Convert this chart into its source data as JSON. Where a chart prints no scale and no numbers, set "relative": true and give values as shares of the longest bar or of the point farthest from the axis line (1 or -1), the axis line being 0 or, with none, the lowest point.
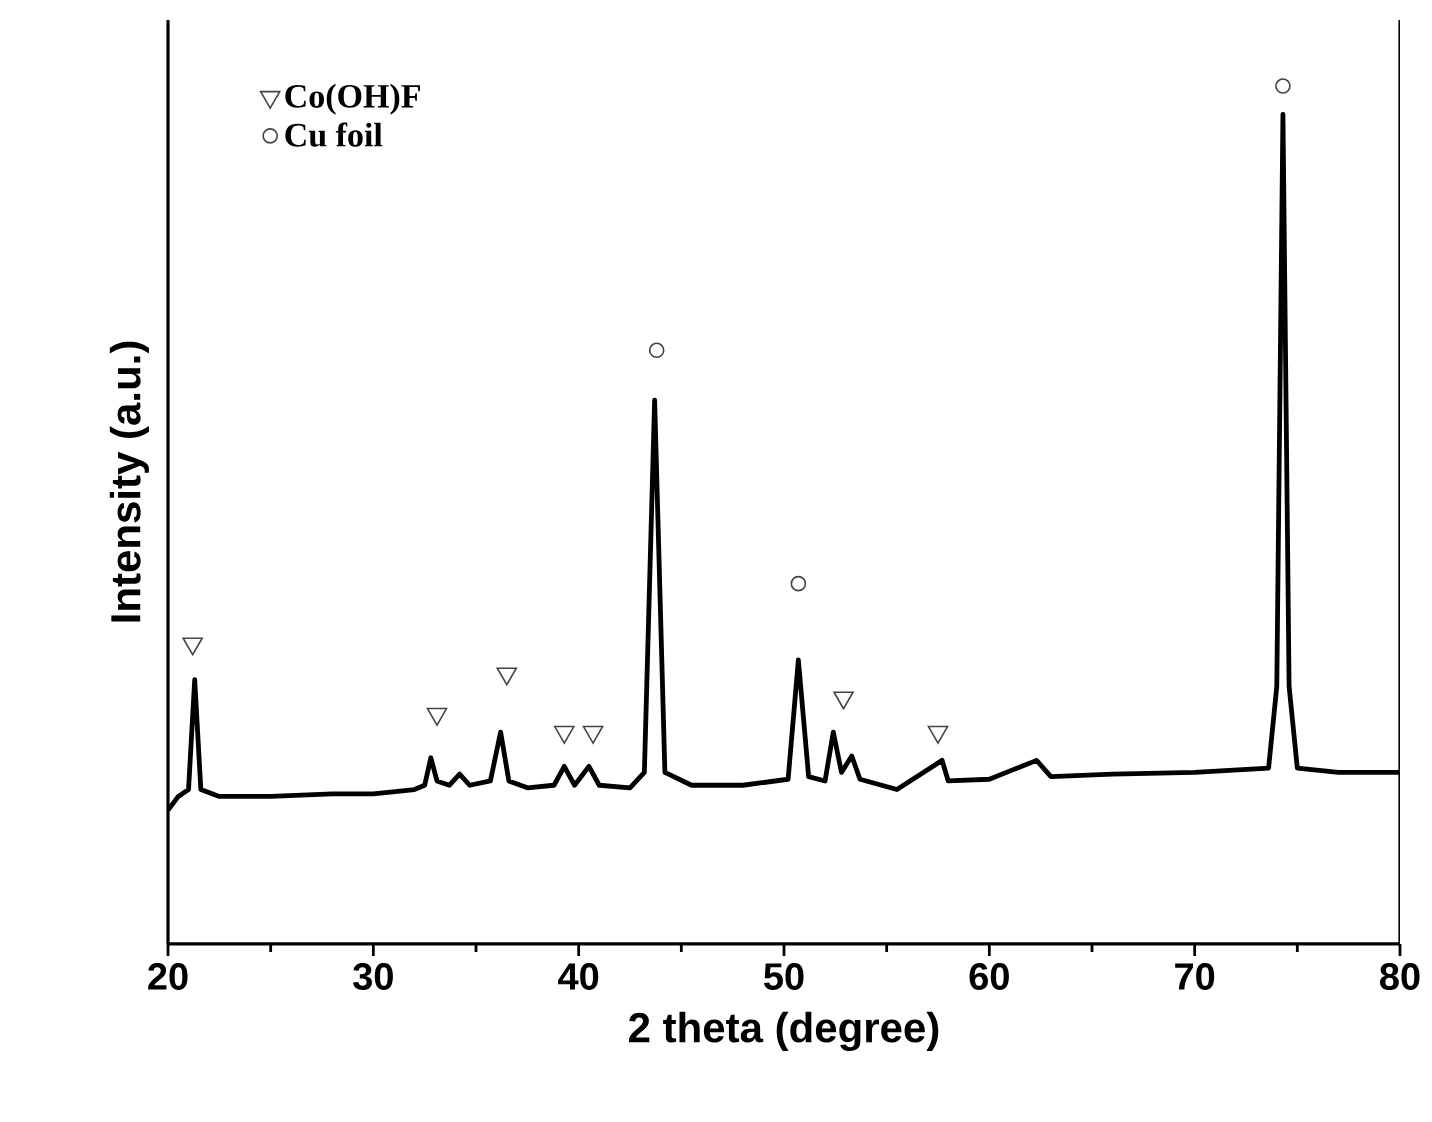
{
  "chart_data": {
    "type": "line",
    "relative": true,
    "xlabel": "2 theta (degree)",
    "ylabel": "Intensity (a.u.)",
    "xlim": [
      20,
      80
    ],
    "xticks": [
      20,
      30,
      40,
      50,
      60,
      70,
      80
    ],
    "legend": "top left",
    "series": [
      {
        "color": "#000000",
        "line_style": "solid",
        "x": [
          20.0,
          20.5,
          21.0,
          21.3,
          21.6,
          22.5,
          25,
          28,
          30,
          32,
          32.5,
          32.8,
          33.1,
          33.7,
          34.2,
          34.7,
          35.7,
          36.2,
          36.6,
          37.5,
          38.8,
          39.3,
          39.8,
          40.5,
          41,
          42.5,
          43.2,
          43.7,
          44.2,
          45.5,
          48,
          50.2,
          50.7,
          51.2,
          52,
          52.4,
          52.8,
          53.3,
          53.7,
          55.5,
          57.7,
          58,
          60,
          62.3,
          63,
          66,
          70,
          73.6,
          74.0,
          74.3,
          74.6,
          75.0,
          77,
          80
        ],
        "values": [
          0.156,
          0.172,
          0.18,
          0.308,
          0.18,
          0.172,
          0.172,
          0.175,
          0.175,
          0.18,
          0.185,
          0.217,
          0.19,
          0.185,
          0.198,
          0.185,
          0.19,
          0.247,
          0.19,
          0.182,
          0.185,
          0.207,
          0.185,
          0.207,
          0.185,
          0.182,
          0.2,
          0.634,
          0.2,
          0.185,
          0.185,
          0.192,
          0.331,
          0.195,
          0.19,
          0.247,
          0.2,
          0.219,
          0.192,
          0.18,
          0.214,
          0.19,
          0.192,
          0.214,
          0.195,
          0.198,
          0.2,
          0.205,
          0.3,
          0.967,
          0.3,
          0.205,
          0.2,
          0.2
        ]
      },
      {
        "type": "scatter",
        "name": "Co(OH)F",
        "marker": "triangle",
        "color": "#444444",
        "x": [
          21.2,
          33.1,
          36.5,
          39.3,
          40.7,
          52.9,
          57.5
        ],
        "values": [
          0.35,
          0.268,
          0.315,
          0.247,
          0.247,
          0.287,
          0.247
        ]
      },
      {
        "type": "scatter",
        "name": "Cu foil",
        "marker": "circle",
        "color": "#444444",
        "x": [
          43.8,
          50.7,
          74.3
        ],
        "values": [
          0.692,
          0.42,
          1.0
        ]
      }
    ]
  }
}
